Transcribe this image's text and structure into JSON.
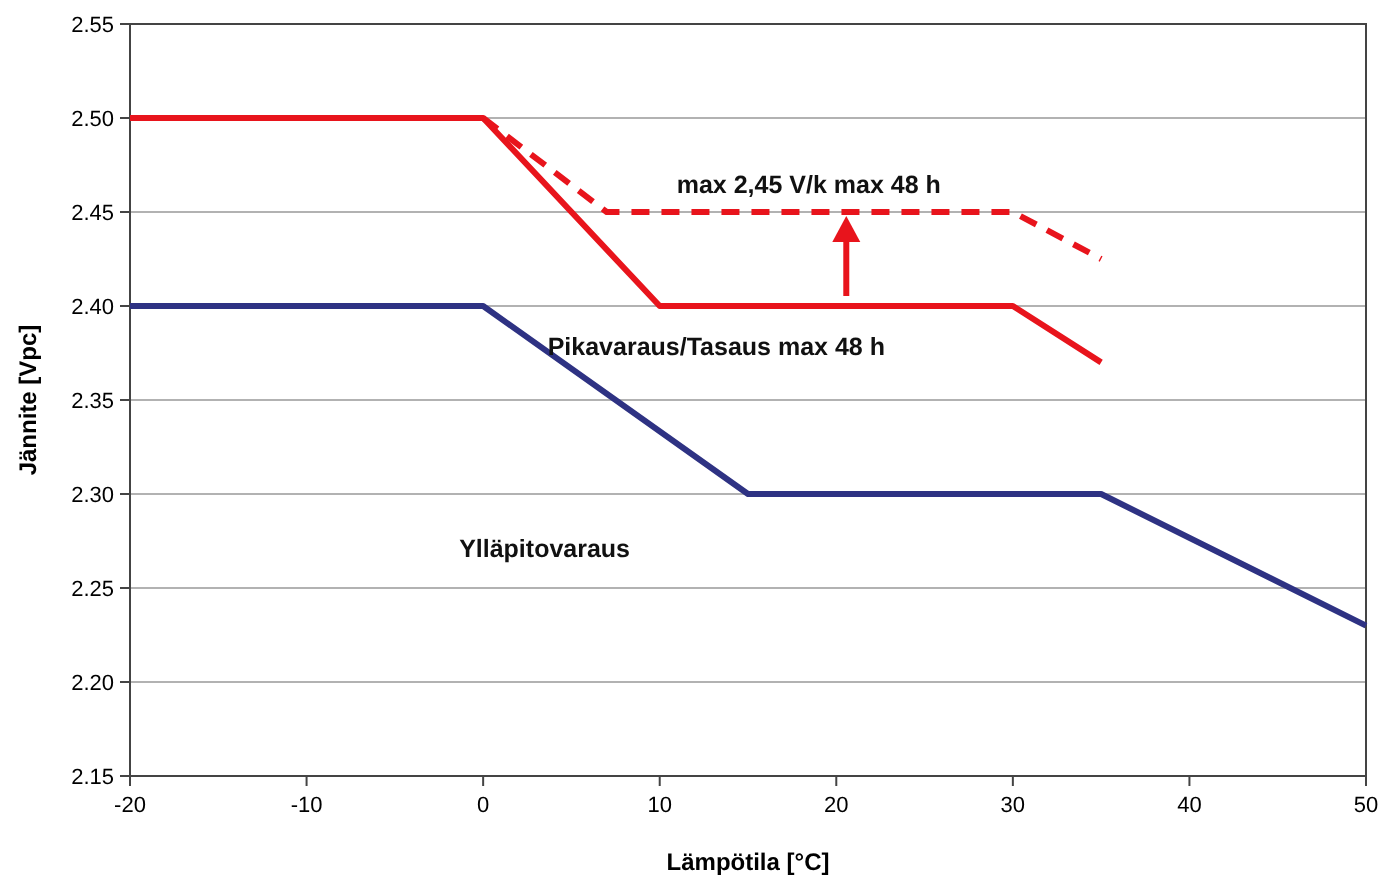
{
  "chart_data": {
    "type": "line",
    "xlabel": "Lämpötila [°C]",
    "ylabel": "Jännite [Vpc]",
    "xlim": [
      -20,
      50
    ],
    "xticks": [
      -20,
      -10,
      0,
      10,
      20,
      30,
      40,
      50
    ],
    "ylim": [
      2.15,
      2.55
    ],
    "yticks": [
      {
        "value": 2.15,
        "label": "2.15"
      },
      {
        "value": 2.2,
        "label": "2.20"
      },
      {
        "value": 2.25,
        "label": "2.25"
      },
      {
        "value": 2.3,
        "label": "2.30"
      },
      {
        "value": 2.35,
        "label": "2.35"
      },
      {
        "value": 2.4,
        "label": "2.40"
      },
      {
        "value": 2.45,
        "label": "2.45"
      },
      {
        "value": 2.5,
        "label": "2.50"
      },
      {
        "value": 2.55,
        "label": "2.55"
      }
    ],
    "grid": "y",
    "series": [
      {
        "color": "#e8141c",
        "x": [
          -20,
          0,
          10,
          30,
          35
        ],
        "values": [
          2.5,
          2.5,
          2.4,
          2.4,
          2.37
        ],
        "line_style": "solid"
      },
      {
        "color": "#e8141c",
        "x": [
          0,
          7,
          30,
          35
        ],
        "values": [
          2.5,
          2.45,
          2.45,
          2.425
        ],
        "line_style": "dashed"
      },
      {
        "color": "#2e3283",
        "x": [
          -20,
          0,
          15,
          35,
          50
        ],
        "values": [
          2.4,
          2.4,
          2.3,
          2.3,
          2.23
        ],
        "line_style": "solid"
      }
    ],
    "annotations": [
      "max 2,45 V/k max 48 h",
      "Pikavaraus/Tasaus max 48 h",
      "Ylläpitovaraus"
    ]
  }
}
